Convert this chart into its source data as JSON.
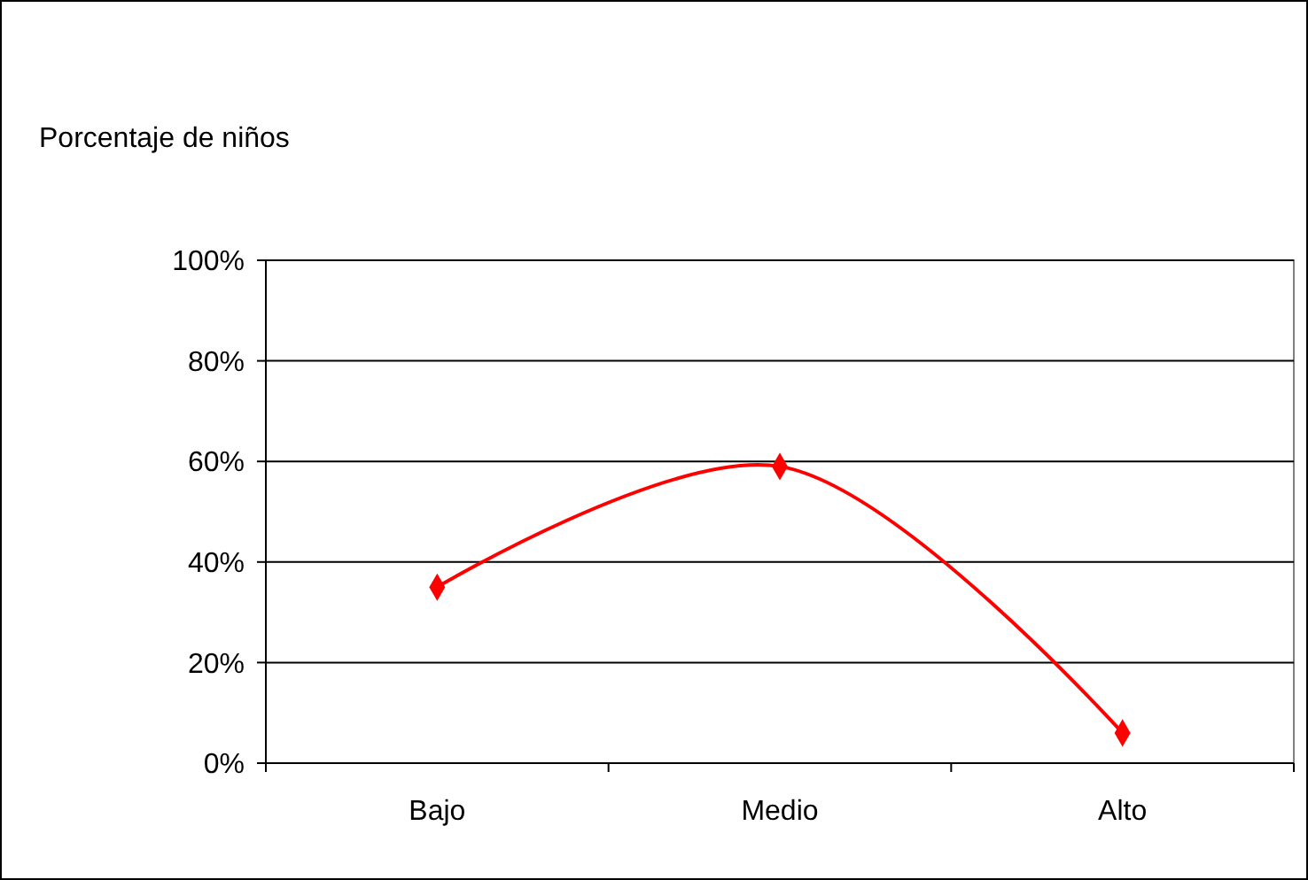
{
  "chart_data": {
    "type": "line",
    "ylabel": "Porcentaje de niños",
    "categories": [
      "Bajo",
      "Medio",
      "Alto"
    ],
    "series": [
      {
        "color": "#ff0000",
        "values": [
          35,
          59,
          6
        ]
      }
    ],
    "ylim": [
      0,
      100
    ],
    "yticks": [
      {
        "value": 0,
        "label": "0%"
      },
      {
        "value": 20,
        "label": "20%"
      },
      {
        "value": 40,
        "label": "40%"
      },
      {
        "value": 60,
        "label": "60%"
      },
      {
        "value": 80,
        "label": "80%"
      },
      {
        "value": 100,
        "label": "100%"
      }
    ],
    "grid": "y",
    "marker": "diamond",
    "line_style": "solid"
  }
}
